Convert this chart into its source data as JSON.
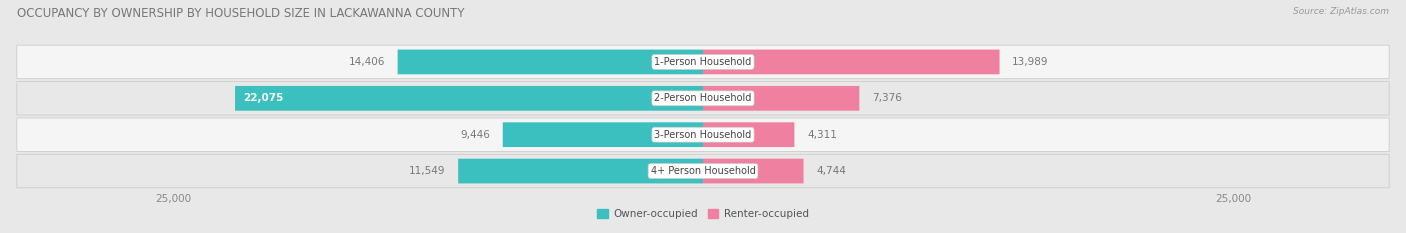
{
  "title": "OCCUPANCY BY OWNERSHIP BY HOUSEHOLD SIZE IN LACKAWANNA COUNTY",
  "source": "Source: ZipAtlas.com",
  "categories": [
    "1-Person Household",
    "2-Person Household",
    "3-Person Household",
    "4+ Person Household"
  ],
  "owner_values": [
    14406,
    22075,
    9446,
    11549
  ],
  "renter_values": [
    13989,
    7376,
    4311,
    4744
  ],
  "max_val": 25000,
  "owner_color": "#3BBFBF",
  "renter_color": "#F080A0",
  "fig_bg_color": "#e8e8e8",
  "row_colors": [
    "#f5f5f5",
    "#e8e8e8"
  ],
  "title_color": "#777777",
  "source_color": "#999999",
  "value_color_light": "#ffffff",
  "value_color_dark": "#777777",
  "title_fontsize": 8.5,
  "bar_label_fontsize": 7.5,
  "category_fontsize": 7.0,
  "axis_label_fontsize": 7.5,
  "legend_fontsize": 7.5,
  "axis_tick_color": "#888888"
}
